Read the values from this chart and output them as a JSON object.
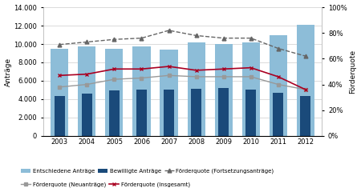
{
  "years": [
    2003,
    2004,
    2005,
    2006,
    2007,
    2008,
    2009,
    2010,
    2011,
    2012
  ],
  "entschiedene": [
    9500,
    9700,
    9500,
    9700,
    9400,
    10200,
    10000,
    10200,
    11000,
    12100
  ],
  "bewilligte": [
    4300,
    4600,
    4950,
    5000,
    5000,
    5150,
    5250,
    5000,
    4650,
    4350
  ],
  "foerderquote_fortsetzung": [
    71,
    73,
    75,
    76,
    82,
    78,
    76,
    76,
    68,
    62
  ],
  "foerderquote_neu": [
    38,
    40,
    44,
    45,
    47,
    46,
    46,
    46,
    40,
    36
  ],
  "foerderquote_gesamt": [
    47,
    48,
    52,
    52,
    54,
    51,
    52,
    53,
    46,
    36
  ],
  "ylim_left": [
    0,
    14000
  ],
  "ylim_right": [
    0,
    100
  ],
  "yticks_left": [
    0,
    2000,
    4000,
    6000,
    8000,
    10000,
    12000,
    14000
  ],
  "yticks_right": [
    0,
    20,
    40,
    60,
    80,
    100
  ],
  "ytick_right_labels": [
    "0%",
    "20%",
    "40%",
    "60%",
    "80%",
    "100%"
  ],
  "color_entschiedene": "#8DBDD8",
  "color_bewilligte": "#1A4A7A",
  "color_fortsetzung": "#666666",
  "color_neu": "#999999",
  "color_gesamt": "#AA0022",
  "ylabel_left": "Anträge",
  "ylabel_right": "Förderquote",
  "legend_entschiedene": "Entschiedene Anträge",
  "legend_bewilligte": "Bewilligte Anträge",
  "legend_fortsetzung": "Förderquote (Fortsetzungsanträge)",
  "legend_neu": "Förderquote (Neuanträge)",
  "legend_gesamt": "Förderquote (Insgesamt)"
}
